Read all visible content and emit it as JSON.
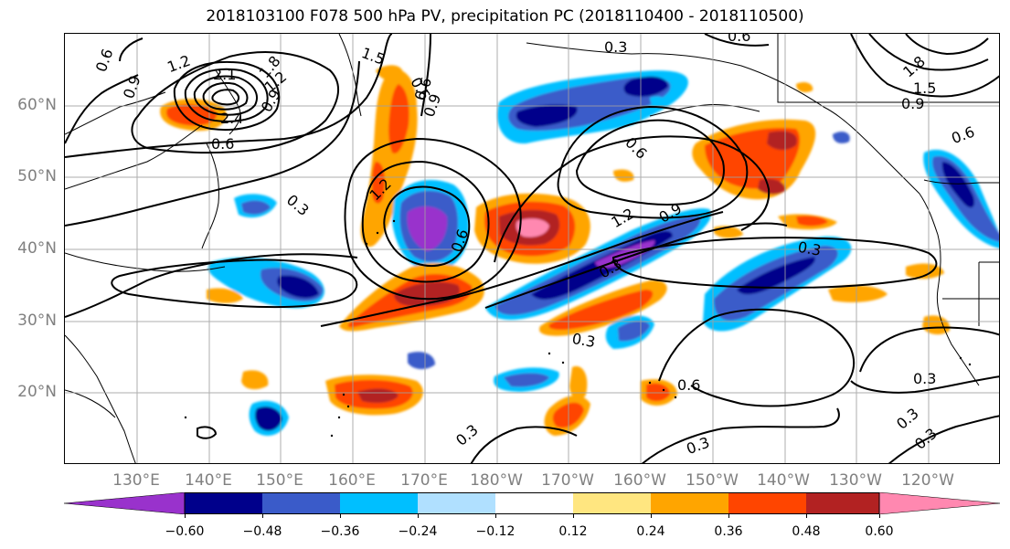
{
  "title": "2018103100 F078 500 hPa PV, precipitation PC (2018110400 - 2018110500)",
  "lat_labels": [
    "60°N",
    "50°N",
    "40°N",
    "30°N",
    "20°N"
  ],
  "lon_labels": [
    "130°E",
    "140°E",
    "150°E",
    "160°E",
    "170°E",
    "180°W",
    "170°W",
    "160°W",
    "150°W",
    "140°W",
    "130°W",
    "120°W"
  ],
  "map_extent": {
    "lon_min": 120,
    "lon_max": 250,
    "lat_min": 10,
    "lat_max": 70
  },
  "colorbar": {
    "ticks": [
      "−0.60",
      "−0.48",
      "−0.36",
      "−0.24",
      "−0.12",
      "0.12",
      "0.24",
      "0.36",
      "0.48",
      "0.60"
    ],
    "colors": [
      "#9932cc",
      "#00008b",
      "#3a5bc9",
      "#00bfff",
      "#b0e0ff",
      "#ffffff",
      "#ffe680",
      "#ffa500",
      "#ff4500",
      "#b22222",
      "#ff88b0"
    ]
  },
  "contour_labels": [
    "0.6",
    "0.9",
    "1.2",
    "2.1",
    "2.4",
    "1.8",
    "1.2",
    "0.9",
    "0.6",
    "0.3",
    "0.6",
    "1.5",
    "1.2",
    "0.9",
    "0.3",
    "0.6",
    "0.3",
    "0.6",
    "1.8",
    "1.5",
    "0.9",
    "0.6",
    "0.3",
    "0.6",
    "0.3",
    "0.3",
    "0.6",
    "0.3",
    "0.3",
    "0.3",
    "0.6",
    "1.2",
    "0.9",
    "0.3"
  ]
}
